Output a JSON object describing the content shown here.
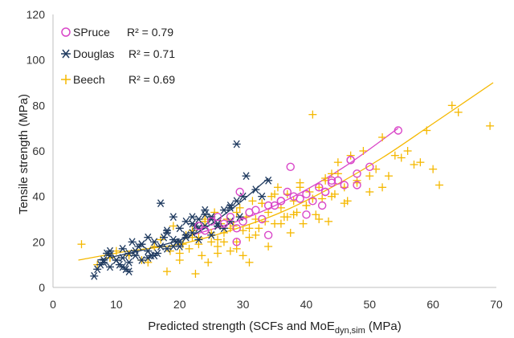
{
  "chart_data": {
    "type": "scatter",
    "title": "",
    "xlabel": {
      "main": "Predicted strength (SCFs and MoE",
      "sub": "dyn,sim",
      "unit": " (MPa)"
    },
    "ylabel": "Tensile strength (MPa)",
    "xlim": [
      0,
      70
    ],
    "ylim": [
      0,
      120
    ],
    "x_ticks": [
      "0",
      "10",
      "20",
      "30",
      "40",
      "50",
      "60",
      "70"
    ],
    "y_ticks": [
      "0",
      "20",
      "40",
      "60",
      "80",
      "100",
      "120"
    ],
    "grid": false,
    "legend_position": "top-left",
    "series": [
      {
        "name": "SPruce",
        "marker": "circle",
        "color": "#d946c8",
        "r2_label": "R² = 0.79",
        "trend": {
          "x": [
            22,
            30,
            38,
            46,
            54.5
          ],
          "y": [
            23,
            30,
            40,
            53,
            70
          ]
        },
        "x": [
          23,
          24,
          25,
          26,
          27,
          28,
          29,
          29.5,
          30,
          31,
          32,
          33,
          34,
          35,
          36,
          37,
          37.5,
          38,
          39,
          40,
          41,
          42,
          42.5,
          43,
          44,
          45,
          46,
          47,
          48,
          50,
          54.5,
          29,
          34,
          36,
          40,
          43,
          44,
          47,
          48
        ],
        "y": [
          27,
          25,
          29,
          31,
          28,
          31,
          20,
          42,
          29,
          33,
          34,
          30,
          23,
          36,
          38,
          42,
          53,
          40,
          39,
          41,
          38,
          44,
          36,
          42,
          46,
          47,
          45,
          56,
          45,
          53,
          69,
          26,
          36,
          38,
          32,
          42,
          47,
          56,
          50
        ]
      },
      {
        "name": "Douglas",
        "marker": "asterisk",
        "color": "#1f3a5f",
        "r2_label": "R² = 0.71",
        "trend": {
          "x": [
            7,
            15,
            22,
            28,
            34
          ],
          "y": [
            12,
            17,
            23,
            34,
            48
          ]
        },
        "x": [
          6.5,
          7,
          7.5,
          8,
          8.5,
          9,
          9,
          10,
          10.5,
          11,
          11,
          11.5,
          12,
          12,
          12.5,
          13,
          13.5,
          14,
          14,
          15,
          15,
          15.5,
          16,
          16.5,
          17,
          17,
          17.5,
          18,
          18,
          19,
          19,
          19.5,
          20,
          20,
          21,
          21,
          22,
          22,
          22.5,
          23,
          23,
          24,
          24,
          25,
          25,
          26,
          27,
          27,
          28,
          28,
          29,
          29,
          29.5,
          30,
          30.5,
          32,
          33,
          34,
          9,
          10,
          12,
          14,
          16,
          18,
          20,
          22,
          24,
          26,
          28,
          8,
          11,
          13,
          15,
          19,
          21,
          23,
          25
        ],
        "y": [
          5,
          8,
          10,
          12,
          15,
          9,
          14,
          12,
          10,
          13,
          17,
          8,
          15,
          11,
          20,
          14,
          18,
          12,
          19,
          16,
          22,
          14,
          20,
          15,
          18,
          37,
          22,
          24,
          17,
          21,
          31,
          20,
          26,
          18,
          29,
          22,
          31,
          24,
          27,
          30,
          21,
          27,
          34,
          23,
          31,
          28,
          26,
          34,
          29,
          36,
          63,
          38,
          31,
          40,
          49,
          43,
          40,
          47,
          16,
          12,
          7,
          19,
          14,
          25,
          20,
          28,
          32,
          27,
          35,
          11,
          9,
          16,
          13,
          18,
          23,
          26,
          30
        ]
      },
      {
        "name": "Beech",
        "marker": "plus",
        "color": "#f5b800",
        "r2_label": "R² = 0.69",
        "trend": {
          "x": [
            4,
            12,
            20,
            28,
            36,
            44,
            52,
            60,
            69.5
          ],
          "y": [
            12,
            16,
            19,
            25,
            33,
            44,
            57,
            72,
            90
          ]
        },
        "x": [
          4.5,
          7,
          9,
          10,
          12,
          14,
          15,
          16,
          17,
          18,
          18.5,
          19,
          20,
          20.5,
          21,
          21.5,
          22,
          22.5,
          23,
          23.5,
          24,
          24.5,
          25,
          25.5,
          26,
          26.5,
          27,
          27.5,
          28,
          28.5,
          29,
          29.5,
          30,
          30.5,
          31,
          31.5,
          32,
          32.5,
          33,
          33.5,
          34,
          34.5,
          35,
          35.5,
          36,
          36.5,
          37,
          37.5,
          38,
          38.5,
          39,
          39.5,
          40,
          40.5,
          41,
          41.5,
          42,
          42.5,
          43,
          43.5,
          44,
          44.5,
          45,
          46,
          46.5,
          47,
          48,
          49,
          50,
          51,
          52,
          53,
          54,
          55,
          56,
          57,
          58,
          59,
          60,
          61,
          63,
          64,
          69,
          20,
          22,
          24,
          26,
          28,
          30,
          32,
          34,
          36,
          38,
          40,
          42,
          44,
          46,
          48,
          50,
          52,
          25,
          27,
          29,
          31,
          33,
          35,
          37,
          39,
          41,
          43,
          45,
          23,
          26,
          29,
          31
        ],
        "y": [
          19,
          10,
          13,
          16,
          14,
          12,
          11,
          18,
          21,
          7,
          16,
          27,
          15,
          19,
          23,
          17,
          25,
          6,
          22,
          14,
          29,
          11,
          20,
          33,
          18,
          28,
          24,
          30,
          16,
          27,
          20,
          35,
          25,
          31,
          22,
          38,
          30,
          26,
          37,
          29,
          33,
          40,
          28,
          44,
          35,
          31,
          41,
          24,
          38,
          33,
          46,
          28,
          36,
          42,
          76,
          32,
          44,
          39,
          48,
          29,
          50,
          41,
          55,
          44,
          38,
          58,
          47,
          60,
          42,
          52,
          66,
          49,
          58,
          57,
          60,
          54,
          55,
          69,
          52,
          45,
          80,
          77,
          71,
          12,
          22,
          30,
          15,
          26,
          14,
          23,
          18,
          28,
          32,
          36,
          30,
          40,
          37,
          46,
          49,
          44,
          24,
          20,
          33,
          26,
          37,
          41,
          31,
          44,
          39,
          47,
          50,
          19,
          21,
          17,
          11
        ]
      }
    ]
  }
}
